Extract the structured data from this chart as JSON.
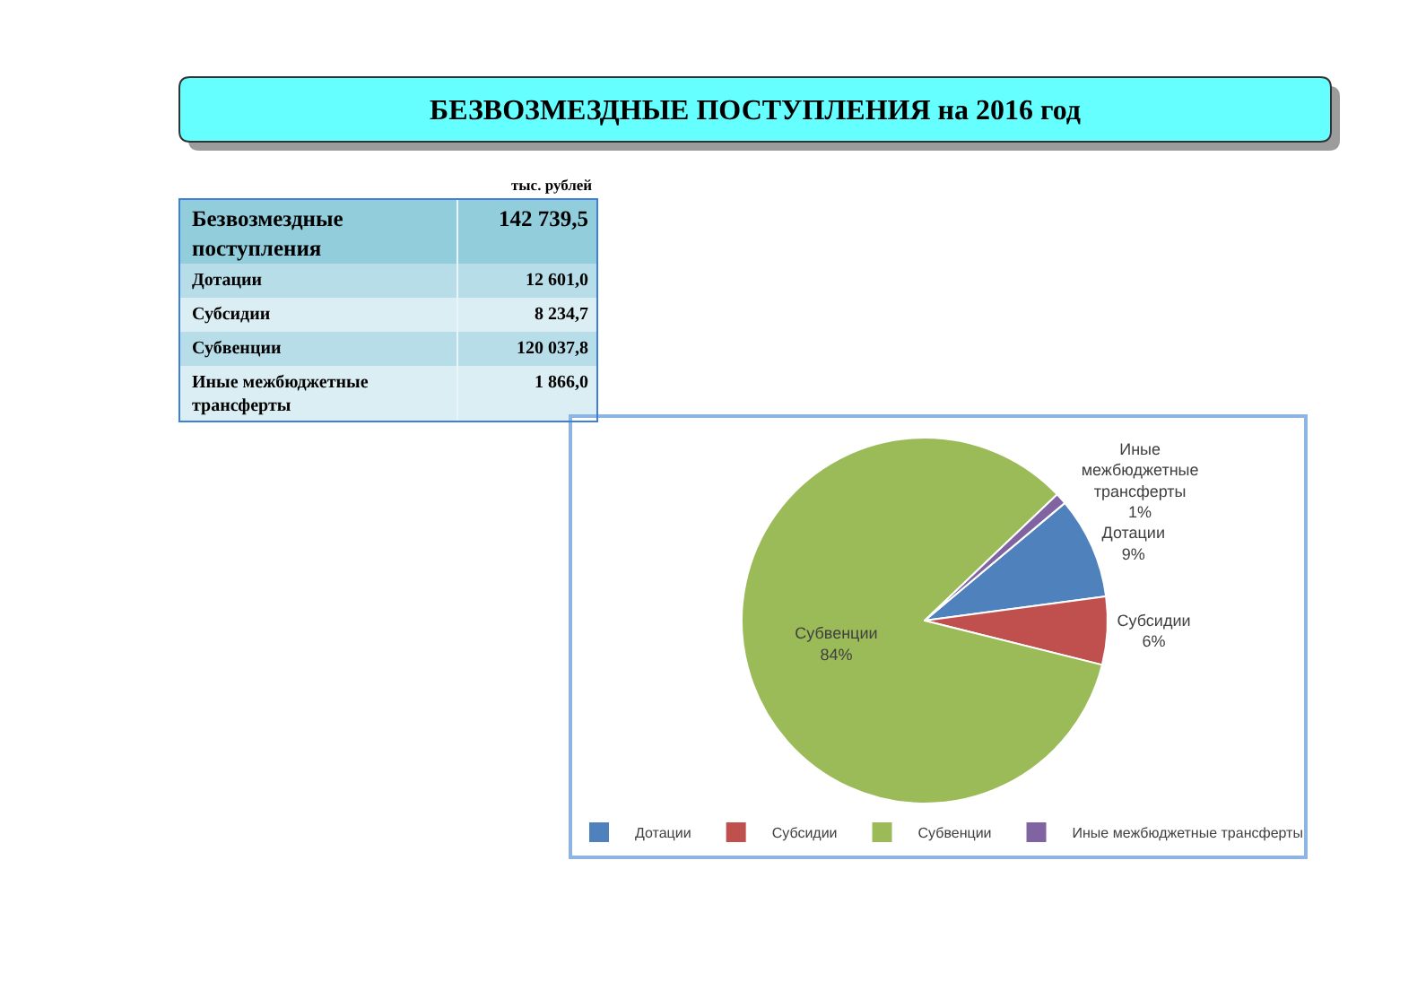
{
  "chart_data": {
    "type": "pie",
    "title": "БЕЗВОЗМЕЗДНЫЕ ПОСТУПЛЕНИЯ на 2016 год",
    "categories": [
      "Дотации",
      "Субсидии",
      "Субвенции",
      "Иные межбюджетные трансферты"
    ],
    "values": [
      9,
      6,
      84,
      1
    ],
    "colors": [
      "#4f81bd",
      "#c0504d",
      "#9bbb59",
      "#8064a2"
    ],
    "value_labels": [
      "9%",
      "6%",
      "84%",
      "1%"
    ],
    "annotations": [
      "тыс. рублей",
      "Безвозмездные поступления",
      "142 739,5",
      "Дотации",
      "12 601,0",
      "Субсидии",
      "8 234,7",
      "Субвенции",
      "120 037,8",
      "Иные межбюджетные трансферты",
      "1 866,0"
    ],
    "legend": "bottom"
  }
}
